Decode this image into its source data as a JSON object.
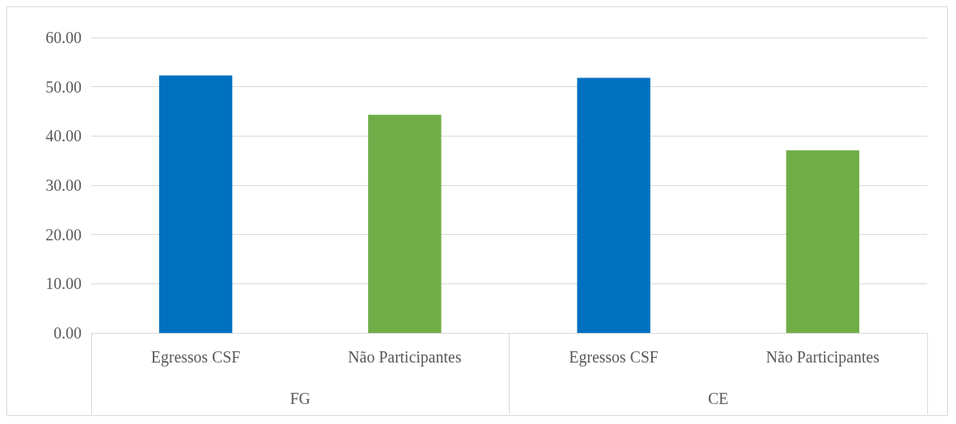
{
  "chart_data": {
    "type": "bar",
    "categories": [
      "FG",
      "CE"
    ],
    "series": [
      {
        "name": "Egressos CSF",
        "color": "#0070c0",
        "values": [
          52.3,
          51.8
        ]
      },
      {
        "name": "Não Participantes",
        "color": "#70ad47",
        "values": [
          44.3,
          37.1
        ]
      }
    ],
    "ylim": [
      0,
      60
    ],
    "yticks": [
      {
        "value": 0,
        "label": "0.00"
      },
      {
        "value": 10,
        "label": "10.00"
      },
      {
        "value": 20,
        "label": "20.00"
      },
      {
        "value": 30,
        "label": "30.00"
      },
      {
        "value": 40,
        "label": "40.00"
      },
      {
        "value": 50,
        "label": "50.00"
      },
      {
        "value": 60,
        "label": "60.00"
      }
    ],
    "grid": "y",
    "legend": false
  }
}
